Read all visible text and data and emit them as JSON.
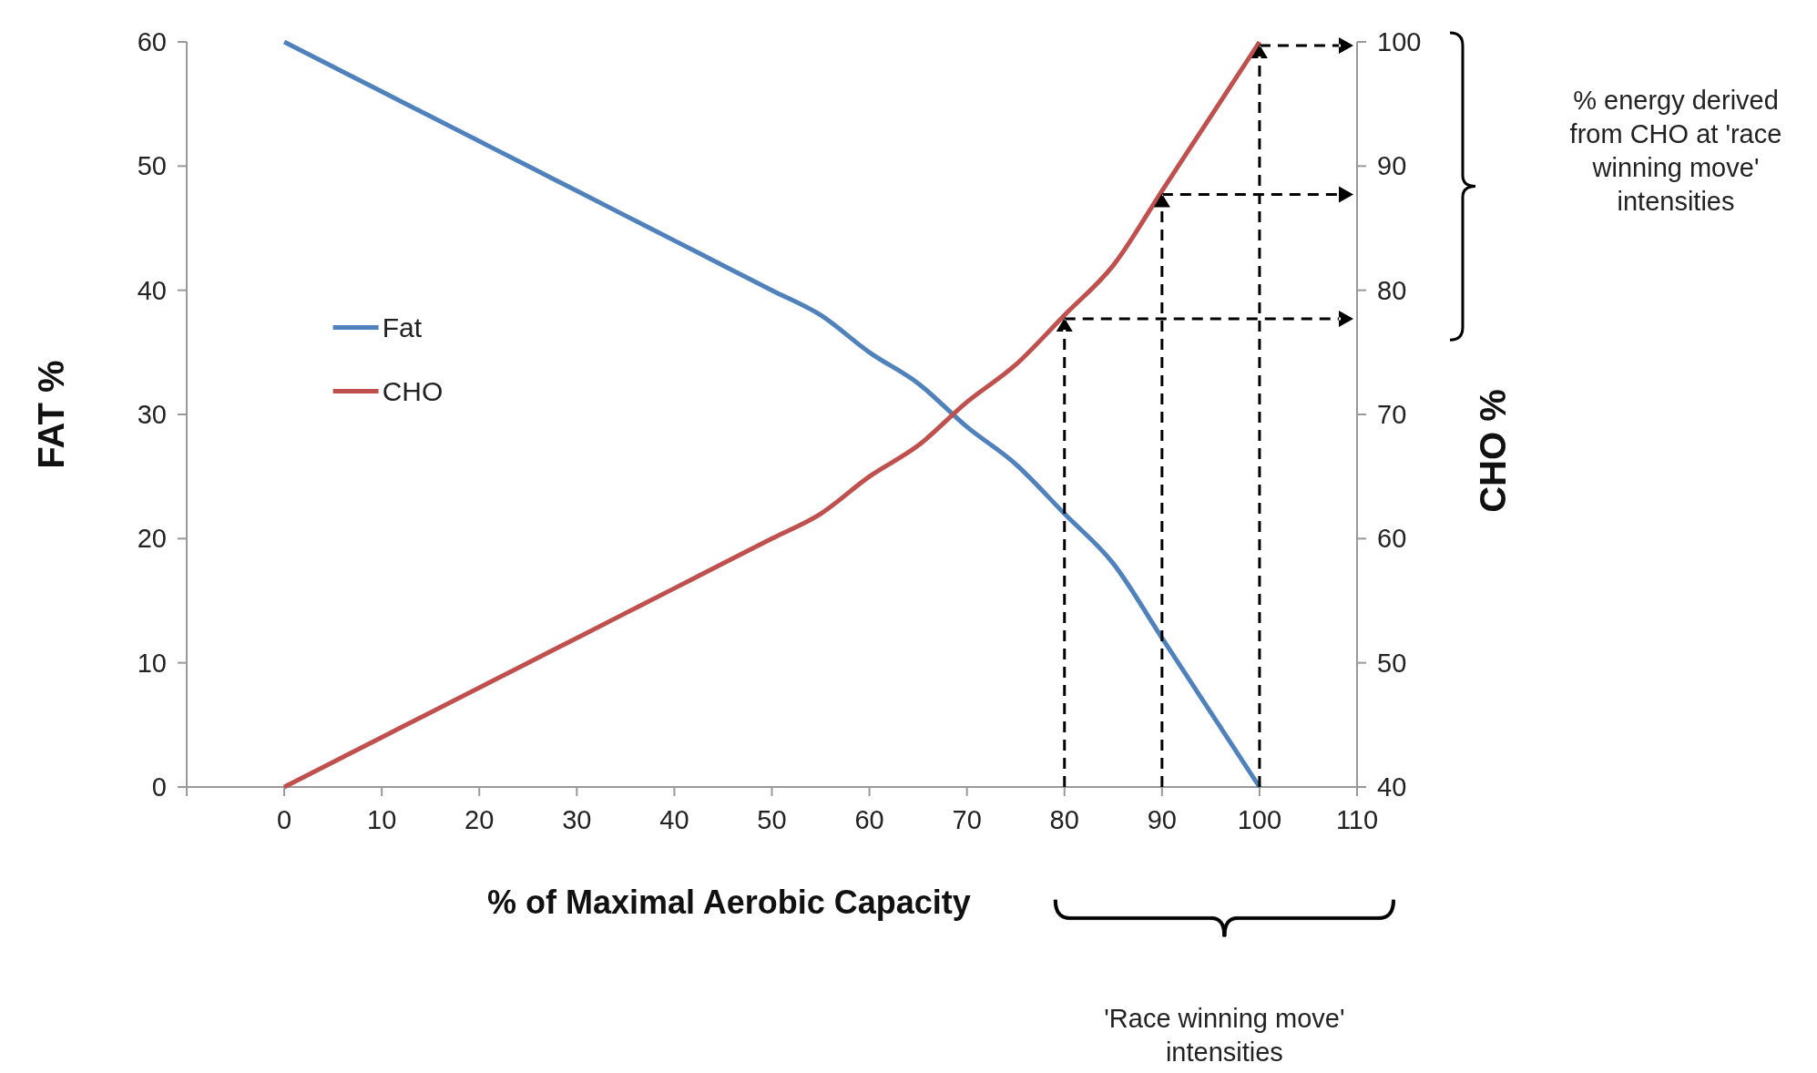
{
  "chart_data": {
    "type": "line",
    "x": [
      0,
      5,
      10,
      15,
      20,
      25,
      30,
      35,
      40,
      45,
      50,
      55,
      60,
      65,
      70,
      75,
      80,
      85,
      90,
      95,
      100
    ],
    "series": [
      {
        "name": "Fat",
        "color": "#4f81bd",
        "values": [
          60,
          58,
          56,
          54,
          52,
          50,
          48,
          46,
          44,
          42,
          40,
          38,
          35,
          32.5,
          29,
          26,
          22,
          18,
          12,
          6,
          0
        ]
      },
      {
        "name": "CHO",
        "color": "#c0504d",
        "axis": "y2",
        "values": [
          40,
          42,
          44,
          46,
          48,
          50,
          52,
          54,
          56,
          58,
          60,
          62,
          65,
          67.5,
          71,
          74,
          78,
          82,
          88,
          94,
          100
        ]
      }
    ],
    "xlabel": "% of Maximal Aerobic Capacity",
    "ylabel": "FAT %",
    "y2label": "CHO %",
    "xlim": [
      -10,
      110
    ],
    "xticks": [
      0,
      10,
      20,
      30,
      40,
      50,
      60,
      70,
      80,
      90,
      100,
      110
    ],
    "ylim": [
      0,
      60
    ],
    "yticks": [
      0,
      10,
      20,
      30,
      40,
      50,
      60
    ],
    "y2lim": [
      40,
      100
    ],
    "y2ticks": [
      40,
      50,
      60,
      70,
      80,
      90,
      100
    ],
    "annotations": [
      "% energy derived from CHO at 'race winning move' intensities",
      "'Race winning move' intensities"
    ],
    "legend": "left",
    "grid": false,
    "marker": "none",
    "line_style": "solid"
  }
}
